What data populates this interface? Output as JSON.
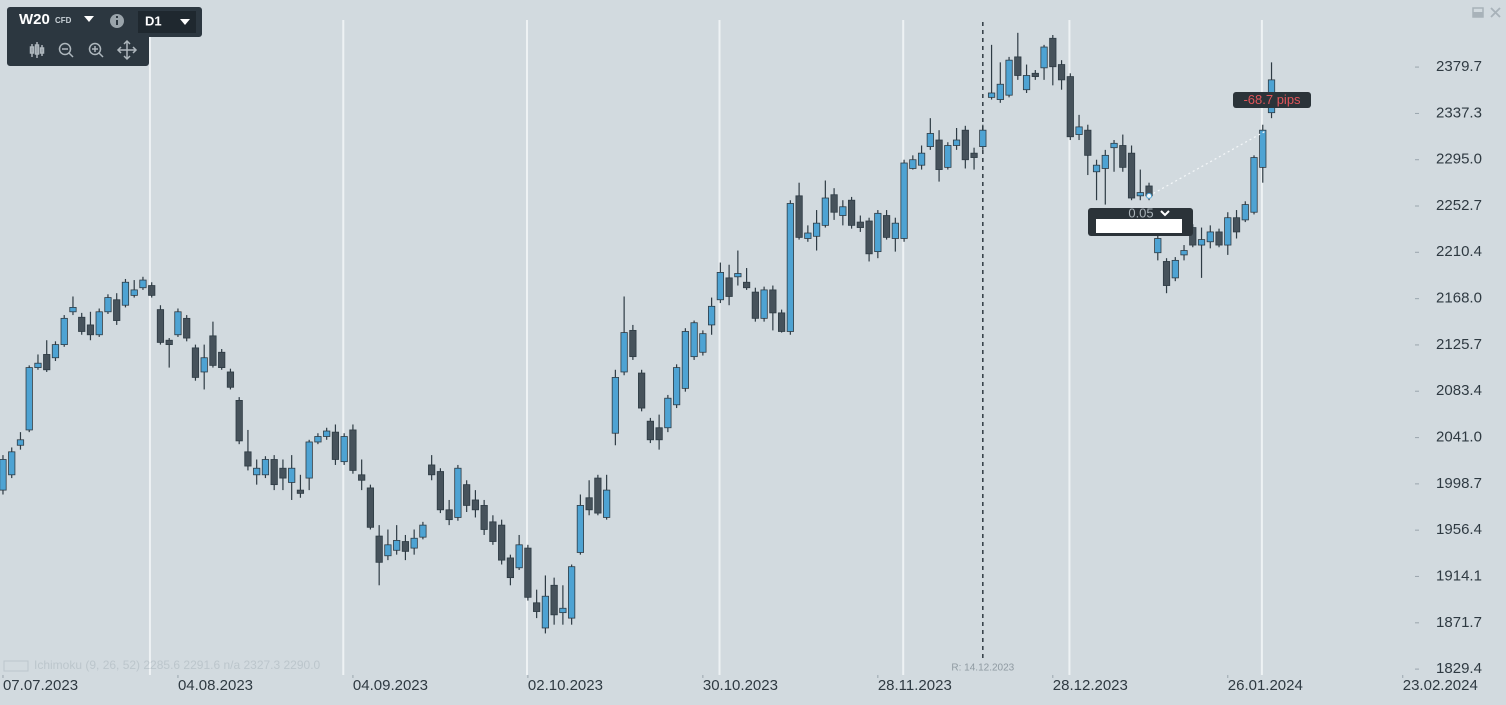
{
  "toolbar": {
    "symbol": "W20",
    "instrument_type": "CFD",
    "timeframe": "D1"
  },
  "chart_data": {
    "type": "candlestick",
    "up_color": "#4ea3d3",
    "down_color": "#46525b",
    "outline_color": "#2e3b44",
    "ohlc": [
      [
        1993,
        2025,
        1989,
        2021
      ],
      [
        2007,
        2032,
        2004,
        2028
      ],
      [
        2034,
        2046,
        2030,
        2039
      ],
      [
        2048,
        2107,
        2046,
        2105
      ],
      [
        2105,
        2117,
        2103,
        2109
      ],
      [
        2117,
        2130,
        2101,
        2103
      ],
      [
        2114,
        2129,
        2111,
        2126
      ],
      [
        2126,
        2153,
        2124,
        2150
      ],
      [
        2156,
        2170,
        2153,
        2160
      ],
      [
        2151,
        2155,
        2135,
        2138
      ],
      [
        2144,
        2156,
        2130,
        2135
      ],
      [
        2135,
        2159,
        2133,
        2156
      ],
      [
        2156,
        2172,
        2154,
        2169
      ],
      [
        2167,
        2173,
        2144,
        2148
      ],
      [
        2162,
        2186,
        2160,
        2183
      ],
      [
        2171,
        2185,
        2169,
        2176
      ],
      [
        2178,
        2188,
        2176,
        2185
      ],
      [
        2180,
        2183,
        2169,
        2171
      ],
      [
        2158,
        2162,
        2126,
        2128
      ],
      [
        2130,
        2132,
        2105,
        2126
      ],
      [
        2135,
        2159,
        2133,
        2156
      ],
      [
        2150,
        2153,
        2129,
        2132
      ],
      [
        2123,
        2126,
        2093,
        2096
      ],
      [
        2101,
        2126,
        2085,
        2114
      ],
      [
        2134,
        2147,
        2105,
        2107
      ],
      [
        2119,
        2122,
        2103,
        2105
      ],
      [
        2101,
        2104,
        2085,
        2087
      ],
      [
        2075,
        2078,
        2035,
        2038
      ],
      [
        2028,
        2048,
        2011,
        2015
      ],
      [
        2007,
        2021,
        1998,
        2013
      ],
      [
        2007,
        2024,
        2004,
        2021
      ],
      [
        2021,
        2025,
        1993,
        1998
      ],
      [
        2013,
        2021,
        1993,
        2004
      ],
      [
        2000,
        2025,
        1984,
        2013
      ],
      [
        1993,
        2007,
        1986,
        1990
      ],
      [
        2004,
        2039,
        1993,
        2037
      ],
      [
        2037,
        2045,
        2035,
        2042
      ],
      [
        2042,
        2050,
        2039,
        2047
      ],
      [
        2046,
        2053,
        2016,
        2021
      ],
      [
        2019,
        2045,
        2016,
        2042
      ],
      [
        2048,
        2053,
        2008,
        2011
      ],
      [
        2007,
        2021,
        1993,
        2002
      ],
      [
        1995,
        1998,
        1957,
        1959
      ],
      [
        1951,
        1961,
        1906,
        1927
      ],
      [
        1933,
        1957,
        1929,
        1943
      ],
      [
        1938,
        1961,
        1934,
        1947
      ],
      [
        1946,
        1952,
        1929,
        1937
      ],
      [
        1940,
        1957,
        1934,
        1949
      ],
      [
        1950,
        1964,
        1948,
        1961
      ],
      [
        2016,
        2025,
        2002,
        2007
      ],
      [
        2010,
        2013,
        1972,
        1975
      ],
      [
        1975,
        1984,
        1961,
        1966
      ],
      [
        1968,
        2016,
        1965,
        2013
      ],
      [
        1998,
        2002,
        1973,
        1979
      ],
      [
        1984,
        1993,
        1968,
        1975
      ],
      [
        1979,
        1984,
        1952,
        1957
      ],
      [
        1964,
        1970,
        1943,
        1946
      ],
      [
        1961,
        1966,
        1925,
        1929
      ],
      [
        1931,
        1934,
        1906,
        1913
      ],
      [
        1922,
        1952,
        1920,
        1943
      ],
      [
        1940,
        1943,
        1892,
        1895
      ],
      [
        1890,
        1902,
        1876,
        1882
      ],
      [
        1867,
        1915,
        1862,
        1896
      ],
      [
        1906,
        1913,
        1870,
        1879
      ],
      [
        1881,
        1906,
        1870,
        1885
      ],
      [
        1876,
        1925,
        1870,
        1923
      ],
      [
        1936,
        1989,
        1934,
        1979
      ],
      [
        1986,
        2002,
        1970,
        1975
      ],
      [
        2004,
        2007,
        1970,
        1972
      ],
      [
        1968,
        2007,
        1966,
        1993
      ],
      [
        2045,
        2103,
        2034,
        2096
      ],
      [
        2101,
        2170,
        2098,
        2137
      ],
      [
        2139,
        2144,
        2112,
        2115
      ],
      [
        2100,
        2103,
        2065,
        2068
      ],
      [
        2056,
        2059,
        2036,
        2039
      ],
      [
        2050,
        2062,
        2030,
        2039
      ],
      [
        2050,
        2080,
        2046,
        2077
      ],
      [
        2071,
        2108,
        2068,
        2105
      ],
      [
        2086,
        2141,
        2083,
        2138
      ],
      [
        2115,
        2148,
        2112,
        2146
      ],
      [
        2119,
        2139,
        2116,
        2136
      ],
      [
        2144,
        2169,
        2135,
        2161
      ],
      [
        2167,
        2201,
        2164,
        2192
      ],
      [
        2187,
        2199,
        2162,
        2170
      ],
      [
        2188,
        2212,
        2180,
        2191
      ],
      [
        2183,
        2196,
        2176,
        2178
      ],
      [
        2174,
        2178,
        2147,
        2150
      ],
      [
        2150,
        2179,
        2147,
        2176
      ],
      [
        2176,
        2180,
        2139,
        2155
      ],
      [
        2155,
        2158,
        2137,
        2138
      ],
      [
        2138,
        2258,
        2135,
        2255
      ],
      [
        2262,
        2274,
        2222,
        2224
      ],
      [
        2223,
        2235,
        2220,
        2228
      ],
      [
        2225,
        2249,
        2212,
        2237
      ],
      [
        2235,
        2276,
        2233,
        2260
      ],
      [
        2263,
        2269,
        2240,
        2247
      ],
      [
        2244,
        2258,
        2235,
        2252
      ],
      [
        2258,
        2261,
        2232,
        2235
      ],
      [
        2238,
        2244,
        2229,
        2233
      ],
      [
        2239,
        2242,
        2202,
        2209
      ],
      [
        2211,
        2249,
        2205,
        2246
      ],
      [
        2244,
        2249,
        2222,
        2224
      ],
      [
        2223,
        2242,
        2211,
        2237
      ],
      [
        2223,
        2295,
        2220,
        2292
      ],
      [
        2287,
        2299,
        2286,
        2295
      ],
      [
        2290,
        2308,
        2286,
        2301
      ],
      [
        2307,
        2333,
        2304,
        2319
      ],
      [
        2313,
        2322,
        2275,
        2286
      ],
      [
        2288,
        2311,
        2286,
        2308
      ],
      [
        2308,
        2324,
        2304,
        2313
      ],
      [
        2322,
        2326,
        2287,
        2295
      ],
      [
        2301,
        2306,
        2286,
        2297
      ],
      [
        2307,
        2327,
        2304,
        2322
      ],
      [
        2352,
        2400,
        2350,
        2356
      ],
      [
        2350,
        2384,
        2347,
        2364
      ],
      [
        2354,
        2389,
        2352,
        2386
      ],
      [
        2389,
        2411,
        2368,
        2372
      ],
      [
        2359,
        2382,
        2356,
        2372
      ],
      [
        2374,
        2377,
        2368,
        2371
      ],
      [
        2379,
        2400,
        2368,
        2398
      ],
      [
        2406,
        2409,
        2363,
        2380
      ],
      [
        2382,
        2386,
        2359,
        2368
      ],
      [
        2371,
        2374,
        2313,
        2316
      ],
      [
        2318,
        2336,
        2313,
        2325
      ],
      [
        2322,
        2327,
        2281,
        2299
      ],
      [
        2284,
        2295,
        2258,
        2290
      ],
      [
        2287,
        2304,
        2254,
        2299
      ],
      [
        2306,
        2313,
        2284,
        2310
      ],
      [
        2308,
        2318,
        2284,
        2288
      ],
      [
        2301,
        2308,
        2258,
        2260
      ],
      [
        2262,
        2286,
        2258,
        2265
      ],
      [
        2271,
        2274,
        2258,
        2262
      ],
      [
        2210,
        2226,
        2203,
        2223
      ],
      [
        2202,
        2205,
        2173,
        2180
      ],
      [
        2187,
        2206,
        2184,
        2203
      ],
      [
        2208,
        2217,
        2203,
        2212
      ],
      [
        2233,
        2236,
        2215,
        2217
      ],
      [
        2217,
        2233,
        2187,
        2222
      ],
      [
        2220,
        2235,
        2214,
        2229
      ],
      [
        2229,
        2232,
        2215,
        2217
      ],
      [
        2217,
        2247,
        2208,
        2242
      ],
      [
        2242,
        2249,
        2223,
        2229
      ],
      [
        2240,
        2257,
        2238,
        2254
      ],
      [
        2247,
        2299,
        2245,
        2297
      ],
      [
        2288,
        2327,
        2274,
        2322
      ],
      [
        2338,
        2384,
        2333,
        2368
      ]
    ],
    "xlim": [
      -0.34,
      161.4
    ],
    "xticks": [
      {
        "value": 0,
        "label": "07.07.2023"
      },
      {
        "value": 20,
        "label": "04.08.2023"
      },
      {
        "value": 40,
        "label": "04.09.2023"
      },
      {
        "value": 60,
        "label": "02.10.2023"
      },
      {
        "value": 80,
        "label": "30.10.2023"
      },
      {
        "value": 100,
        "label": "28.11.2023"
      },
      {
        "value": 120,
        "label": "28.12.2023"
      },
      {
        "value": 140,
        "label": "26.01.2024"
      },
      {
        "value": 160,
        "label": "23.02.2024"
      }
    ],
    "xgrid": [
      16.8,
      38.9,
      59.9,
      81.9,
      102.9,
      121.9,
      143.9
    ],
    "ylim": [
      1824,
      2441
    ],
    "yticks": [
      1829.4,
      1871.7,
      1914.1,
      1956.4,
      1998.7,
      {
        "value": 2041,
        "label": "2041.0"
      },
      2083.4,
      2125.7,
      {
        "value": 2168,
        "label": "2168.0"
      },
      2210.4,
      2252.7,
      {
        "value": 2295,
        "label": "2295.0"
      },
      2337.3,
      2379.7
    ],
    "marker_line": {
      "x": 112,
      "label": "R: 14.12.2023"
    },
    "measure": {
      "from": [
        131,
        2262
      ],
      "to": [
        144.5,
        2322
      ],
      "label": "-68.7 pips"
    },
    "indicator": "Ichimoku (9, 26, 52) 2285.6 2291.6 n/a 2327.3 2290.0"
  },
  "order_box": {
    "lot": "0.05"
  }
}
